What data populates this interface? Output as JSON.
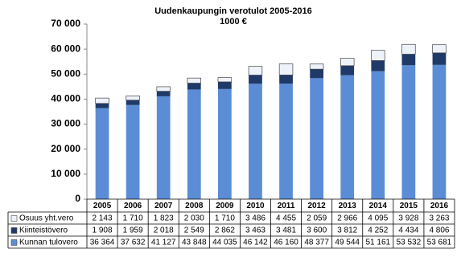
{
  "chart_data": {
    "type": "stacked-bar-table",
    "title": "Uudenkaupungin verotulot 2005-2016",
    "subtitle": "1000 €",
    "categories": [
      "2005",
      "2006",
      "2007",
      "2008",
      "2009",
      "2010",
      "2011",
      "2012",
      "2013",
      "2014",
      "2015",
      "2016"
    ],
    "series": [
      {
        "name": "Kunnan tulovero",
        "color": "#5b8dd6",
        "values": [
          36364,
          37632,
          41127,
          43848,
          44035,
          46142,
          46160,
          48377,
          49544,
          51161,
          53532,
          53681
        ],
        "value_labels": [
          "36 364",
          "37 632",
          "41 127",
          "43 848",
          "44 035",
          "46 142",
          "46 160",
          "48 377",
          "49 544",
          "51 161",
          "53 532",
          "53 681"
        ]
      },
      {
        "name": "Kiinteistövero",
        "color": "#1f3a68",
        "values": [
          1908,
          1959,
          2018,
          2549,
          2862,
          3463,
          3481,
          3600,
          3812,
          4252,
          4434,
          4806
        ],
        "value_labels": [
          "1 908",
          "1 959",
          "2 018",
          "2 549",
          "2 862",
          "3 463",
          "3 481",
          "3 600",
          "3 812",
          "4 252",
          "4 434",
          "4 806"
        ]
      },
      {
        "name": "Osuus yht.vero",
        "color": "#eef3fb",
        "values": [
          2143,
          1710,
          1823,
          2030,
          1710,
          3486,
          4455,
          2059,
          2966,
          4095,
          3928,
          3263
        ],
        "value_labels": [
          "2 143",
          "1 710",
          "1 823",
          "2 030",
          "1 710",
          "3 486",
          "4 455",
          "2 059",
          "2 966",
          "4 095",
          "3 928",
          "3 263"
        ]
      }
    ],
    "ylim": [
      0,
      70000
    ],
    "yticks": [
      0,
      {
        "value": 10000,
        "label": "10 000"
      },
      {
        "value": 20000,
        "label": "20 000"
      },
      {
        "value": 30000,
        "label": "30 000"
      },
      {
        "value": 40000,
        "label": "40 000"
      },
      {
        "value": 50000,
        "label": "50 000"
      },
      {
        "value": 60000,
        "label": "60 000"
      },
      {
        "value": 70000,
        "label": "70 000"
      }
    ]
  }
}
